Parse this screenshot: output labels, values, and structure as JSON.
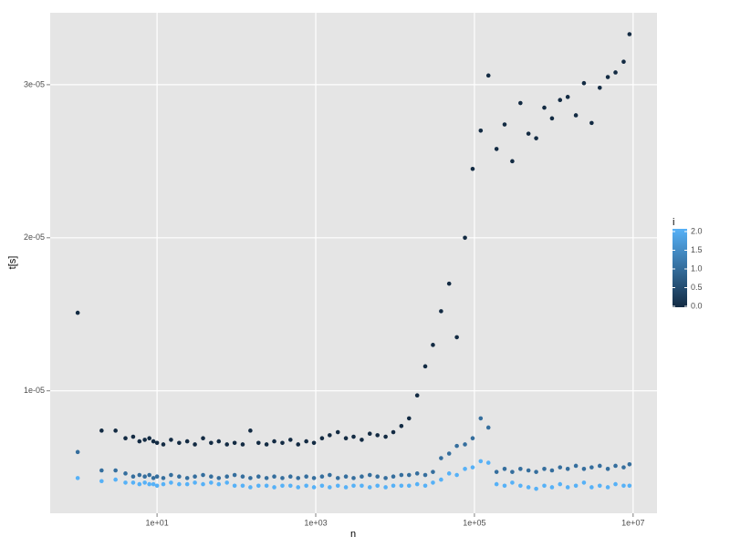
{
  "chart_data": {
    "type": "scatter",
    "x_label": "n",
    "y_label": "t[s]",
    "x_scale": "log",
    "grid": true,
    "xlim": [
      0.45,
      20000000
    ],
    "ylim": [
      2e-06,
      3.47e-05
    ],
    "xticks": [
      {
        "value": 10,
        "label": "1e+01"
      },
      {
        "value": 1000,
        "label": "1e+03"
      },
      {
        "value": 100000,
        "label": "1e+05"
      },
      {
        "value": 10000000,
        "label": "1e+07"
      }
    ],
    "yticks": [
      {
        "value": 1e-05,
        "label": "1e-05"
      },
      {
        "value": 2e-05,
        "label": "2e-05"
      },
      {
        "value": 3e-05,
        "label": "3e-05"
      }
    ],
    "color_scale": {
      "title": "i",
      "low": "#132B43",
      "high": "#56B1F7",
      "limits": [
        0,
        2
      ],
      "ticks": [
        {
          "value": 0,
          "label": "0.0"
        },
        {
          "value": 0.5,
          "label": "0.5"
        },
        {
          "value": 1,
          "label": "1.0"
        },
        {
          "value": 1.5,
          "label": "1.5"
        },
        {
          "value": 2,
          "label": "2.0"
        }
      ]
    },
    "x": [
      1,
      2,
      3,
      4,
      5,
      6,
      7,
      8,
      9,
      10,
      12,
      15,
      19,
      24,
      30,
      38,
      48,
      60,
      76,
      95,
      120,
      150,
      190,
      240,
      300,
      380,
      480,
      600,
      760,
      950,
      1200,
      1500,
      1900,
      2400,
      3000,
      3800,
      4800,
      6000,
      7600,
      9500,
      12000,
      15000,
      19000,
      24000,
      30000,
      38000,
      48000,
      60000,
      76000,
      95000,
      120000,
      150000,
      190000,
      240000,
      300000,
      380000,
      480000,
      600000,
      760000,
      950000,
      1200000,
      1500000,
      1900000,
      2400000,
      3000000,
      3800000,
      4800000,
      6000000,
      7600000,
      9000000
    ],
    "series": [
      {
        "i": 0,
        "values": [
          1.51e-05,
          7.4e-06,
          7.4e-06,
          6.9e-06,
          7e-06,
          6.7e-06,
          6.8e-06,
          6.9e-06,
          6.7e-06,
          6.6e-06,
          6.5e-06,
          6.8e-06,
          6.6e-06,
          6.7e-06,
          6.5e-06,
          6.9e-06,
          6.6e-06,
          6.7e-06,
          6.5e-06,
          6.6e-06,
          6.5e-06,
          7.4e-06,
          6.6e-06,
          6.5e-06,
          6.7e-06,
          6.6e-06,
          6.8e-06,
          6.5e-06,
          6.7e-06,
          6.6e-06,
          6.9e-06,
          7.1e-06,
          7.3e-06,
          6.9e-06,
          7e-06,
          6.8e-06,
          7.2e-06,
          7.1e-06,
          7e-06,
          7.3e-06,
          7.7e-06,
          8.2e-06,
          9.7e-06,
          1.16e-05,
          1.3e-05,
          1.52e-05,
          1.7e-05,
          1.35e-05,
          2e-05,
          2.45e-05,
          2.7e-05,
          3.06e-05,
          2.58e-05,
          2.74e-05,
          2.5e-05,
          2.88e-05,
          2.68e-05,
          2.65e-05,
          2.85e-05,
          2.78e-05,
          2.9e-05,
          2.92e-05,
          2.8e-05,
          3.01e-05,
          2.75e-05,
          2.98e-05,
          3.05e-05,
          3.08e-05,
          3.15e-05,
          3.33e-05
        ]
      },
      {
        "i": 1,
        "values": [
          6e-06,
          4.8e-06,
          4.8e-06,
          4.6e-06,
          4.4e-06,
          4.5e-06,
          4.4e-06,
          4.5e-06,
          4.3e-06,
          4.4e-06,
          4.3e-06,
          4.5e-06,
          4.4e-06,
          4.3e-06,
          4.4e-06,
          4.5e-06,
          4.4e-06,
          4.3e-06,
          4.4e-06,
          4.5e-06,
          4.4e-06,
          4.3e-06,
          4.4e-06,
          4.3e-06,
          4.4e-06,
          4.3e-06,
          4.4e-06,
          4.3e-06,
          4.4e-06,
          4.3e-06,
          4.4e-06,
          4.5e-06,
          4.3e-06,
          4.4e-06,
          4.3e-06,
          4.4e-06,
          4.5e-06,
          4.4e-06,
          4.3e-06,
          4.4e-06,
          4.5e-06,
          4.5e-06,
          4.6e-06,
          4.5e-06,
          4.7e-06,
          5.6e-06,
          5.9e-06,
          6.4e-06,
          6.5e-06,
          6.9e-06,
          8.2e-06,
          7.6e-06,
          4.7e-06,
          4.9e-06,
          4.7e-06,
          4.9e-06,
          4.8e-06,
          4.7e-06,
          4.9e-06,
          4.8e-06,
          5e-06,
          4.9e-06,
          5.1e-06,
          4.9e-06,
          5e-06,
          5.1e-06,
          4.9e-06,
          5.1e-06,
          5e-06,
          5.2e-06
        ]
      },
      {
        "i": 2,
        "values": [
          4.3e-06,
          4.1e-06,
          4.2e-06,
          4e-06,
          4e-06,
          3.9e-06,
          4e-06,
          3.9e-06,
          3.9e-06,
          3.8e-06,
          3.9e-06,
          4e-06,
          3.9e-06,
          3.9e-06,
          4e-06,
          3.9e-06,
          4e-06,
          3.9e-06,
          4e-06,
          3.8e-06,
          3.8e-06,
          3.7e-06,
          3.8e-06,
          3.8e-06,
          3.7e-06,
          3.8e-06,
          3.8e-06,
          3.7e-06,
          3.8e-06,
          3.7e-06,
          3.8e-06,
          3.7e-06,
          3.8e-06,
          3.7e-06,
          3.8e-06,
          3.8e-06,
          3.7e-06,
          3.8e-06,
          3.7e-06,
          3.8e-06,
          3.8e-06,
          3.8e-06,
          3.9e-06,
          3.8e-06,
          4e-06,
          4.2e-06,
          4.6e-06,
          4.5e-06,
          4.9e-06,
          5e-06,
          5.4e-06,
          5.3e-06,
          3.9e-06,
          3.8e-06,
          4e-06,
          3.8e-06,
          3.7e-06,
          3.6e-06,
          3.8e-06,
          3.7e-06,
          3.9e-06,
          3.7e-06,
          3.8e-06,
          4e-06,
          3.7e-06,
          3.8e-06,
          3.7e-06,
          3.9e-06,
          3.8e-06,
          3.8e-06
        ]
      }
    ]
  }
}
